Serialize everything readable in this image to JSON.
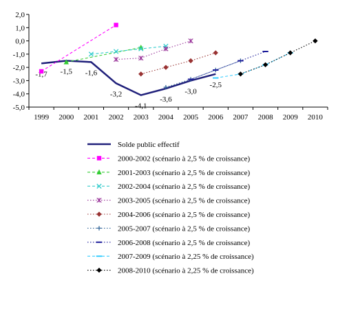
{
  "chart_data": {
    "type": "line",
    "title": "",
    "xlabel": "",
    "ylabel": "",
    "x": [
      "1999",
      "2000",
      "2001",
      "2002",
      "2003",
      "2004",
      "2005",
      "2006",
      "2007",
      "2008",
      "2009",
      "2010"
    ],
    "ylim": [
      -5.0,
      2.0
    ],
    "yticks": [
      "2,0",
      "1,0",
      "0,0",
      "-1,0",
      "-2,0",
      "-3,0",
      "-4,0",
      "-5,0"
    ],
    "grid": false,
    "legend_position": "bottom",
    "series": [
      {
        "name": "Solde public effectif",
        "color": "#1f1f7a",
        "style": "solid",
        "marker": "none",
        "points": [
          [
            "1999",
            -1.7
          ],
          [
            "2000",
            -1.5
          ],
          [
            "2001",
            -1.6
          ],
          [
            "2002",
            -3.2
          ],
          [
            "2003",
            -4.1
          ],
          [
            "2004",
            -3.6
          ],
          [
            "2005",
            -3.0
          ],
          [
            "2006",
            -2.5
          ]
        ],
        "labels": [
          "-1,7",
          "-1,5",
          "-1,6",
          "-3,2",
          "-4,1",
          "-3,6",
          "-3,0",
          "-2,5"
        ]
      },
      {
        "name": "2000-2002 (scénario à 2,5 % de croissance)",
        "color": "#ff00ff",
        "style": "dashed",
        "marker": "square",
        "points": [
          [
            "1999",
            -2.3
          ],
          [
            "2002",
            1.2
          ]
        ]
      },
      {
        "name": "2001-2003 (scénario à 2,5 % de croissance)",
        "color": "#33cc33",
        "style": "dashed",
        "marker": "triangle",
        "points": [
          [
            "2000",
            -1.6
          ],
          [
            "2003",
            -0.5
          ]
        ]
      },
      {
        "name": "2002-2004 (scénario à 2,5 % de croissance)",
        "color": "#33cccc",
        "style": "dashed",
        "marker": "x",
        "points": [
          [
            "2001",
            -1.0
          ],
          [
            "2002",
            -0.8
          ],
          [
            "2003",
            -0.6
          ],
          [
            "2004",
            -0.4
          ]
        ]
      },
      {
        "name": "2003-2005 (scénario à 2,5 % de croissance)",
        "color": "#993399",
        "style": "dotted",
        "marker": "star",
        "points": [
          [
            "2002",
            -1.4
          ],
          [
            "2003",
            -1.3
          ],
          [
            "2004",
            -0.6
          ],
          [
            "2005",
            0.0
          ]
        ]
      },
      {
        "name": "2004-2006 (scénario à 2,5 % de croissance)",
        "color": "#993333",
        "style": "dotted",
        "marker": "diamond",
        "points": [
          [
            "2003",
            -2.5
          ],
          [
            "2004",
            -2.0
          ],
          [
            "2005",
            -1.5
          ],
          [
            "2006",
            -0.9
          ]
        ]
      },
      {
        "name": "2005-2007 (scénario à 2,5 % de croissance)",
        "color": "#336699",
        "style": "dotted",
        "marker": "plus",
        "points": [
          [
            "2004",
            -3.5
          ],
          [
            "2005",
            -2.9
          ],
          [
            "2006",
            -2.2
          ],
          [
            "2007",
            -1.5
          ]
        ]
      },
      {
        "name": "2006-2008 (scénario à 2,5 % de croissance)",
        "color": "#1a1a99",
        "style": "dotted",
        "marker": "dash",
        "points": [
          [
            "2005",
            -2.9
          ],
          [
            "2006",
            -2.2
          ],
          [
            "2007",
            -1.5
          ],
          [
            "2008",
            -0.8
          ]
        ]
      },
      {
        "name": "2007-2009 (scénario à 2,25 % de croissance)",
        "color": "#33ccff",
        "style": "dashed",
        "marker": "dash",
        "points": [
          [
            "2006",
            -2.8
          ],
          [
            "2007",
            -2.5
          ],
          [
            "2008",
            -1.8
          ],
          [
            "2009",
            -0.9
          ]
        ]
      },
      {
        "name": "2008-2010 (scénario à 2,25 % de croissance)",
        "color": "#000000",
        "style": "dotted",
        "marker": "diamond",
        "points": [
          [
            "2007",
            -2.5
          ],
          [
            "2008",
            -1.8
          ],
          [
            "2009",
            -0.9
          ],
          [
            "2010",
            0.0
          ]
        ]
      }
    ]
  }
}
